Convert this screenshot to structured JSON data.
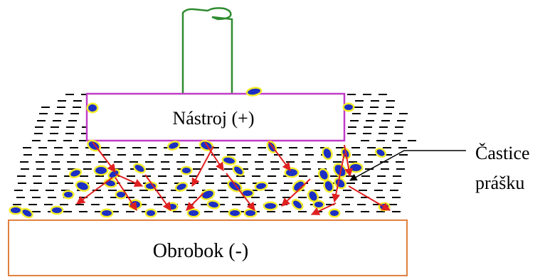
{
  "tool_label": "Nástroj (+)",
  "workpiece_label": "Obrobok (-)",
  "particle_label": [
    "Častice",
    "prášku"
  ],
  "colors": {
    "tool_border": "#c03cc8",
    "workpiece_border": "#e0813e",
    "electrode_stem": "#2e8b2e",
    "arrow": "#e02020",
    "particle": "#1c2fc4",
    "particle_halo": "#f5ee2a",
    "dielectric_dash": "#000000"
  }
}
